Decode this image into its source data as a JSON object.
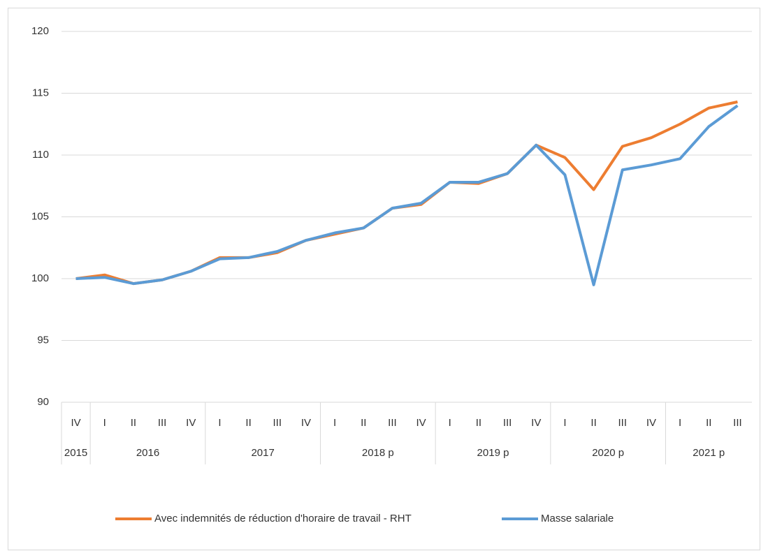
{
  "chart_data": {
    "type": "line",
    "categories": [
      "IV",
      "I",
      "II",
      "III",
      "IV",
      "I",
      "II",
      "III",
      "IV",
      "I",
      "II",
      "III",
      "IV",
      "I",
      "II",
      "III",
      "IV",
      "I",
      "II",
      "III",
      "IV",
      "I",
      "II",
      "III"
    ],
    "years": [
      "2015",
      "2016",
      null,
      null,
      null,
      "2017",
      null,
      null,
      null,
      "2018 p",
      null,
      null,
      null,
      "2019 p",
      null,
      null,
      null,
      "2020 p",
      null,
      null,
      null,
      "2021 p",
      null,
      null
    ],
    "series": [
      {
        "name": "Avec indemnités de réduction d'horaire de travail - RHT",
        "color": "#ed7d31",
        "values": [
          100,
          100.3,
          99.6,
          99.9,
          100.6,
          101.7,
          101.7,
          102.1,
          103.1,
          103.6,
          104.1,
          105.7,
          106.0,
          107.8,
          107.7,
          108.5,
          110.8,
          109.8,
          107.2,
          110.7,
          111.4,
          112.5,
          113.8,
          114.3
        ]
      },
      {
        "name": "Masse salariale",
        "color": "#5b9bd5",
        "values": [
          100,
          100.1,
          99.6,
          99.9,
          100.6,
          101.6,
          101.7,
          102.2,
          103.1,
          103.7,
          104.1,
          105.7,
          106.1,
          107.8,
          107.8,
          108.5,
          110.8,
          108.4,
          99.5,
          108.8,
          109.2,
          109.7,
          112.3,
          114.0
        ]
      }
    ],
    "ylim": [
      90,
      120
    ],
    "yticks": [
      90,
      95,
      100,
      105,
      110,
      115,
      120
    ],
    "grid": true,
    "legend": "bottom"
  }
}
